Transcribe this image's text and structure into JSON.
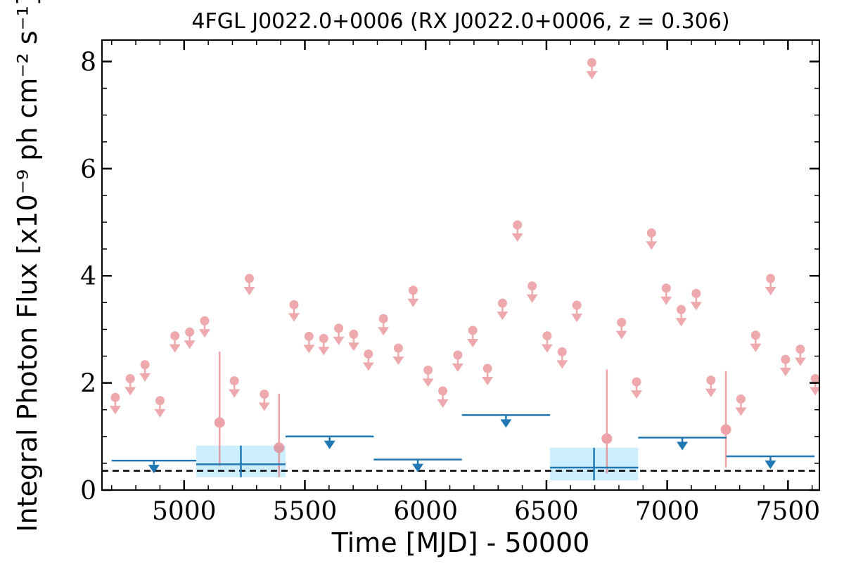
{
  "chart_data": {
    "type": "scatter",
    "title": "4FGL J0022.0+0006 (RX J0022.0+0006, z = 0.306)",
    "xlabel": "Time [MJD] - 50000",
    "ylabel": "Integral Photon Flux [x10⁻⁹ ph cm⁻² s⁻¹]",
    "xlim": [
      4660,
      7630
    ],
    "ylim": [
      0,
      8.4
    ],
    "x_ticks": [
      5000,
      5500,
      6000,
      6500,
      7000,
      7500
    ],
    "x_tick_labels": [
      "5000",
      "5500",
      "6000",
      "6500",
      "7000",
      "7500"
    ],
    "y_ticks": [
      0,
      2,
      4,
      6,
      8
    ],
    "y_tick_labels": [
      "0",
      "2",
      "4",
      "6",
      "8"
    ],
    "grid": false,
    "colors": {
      "monthly": "#e57c82",
      "yearly": "#1f77b4",
      "yearly_band": "#cdeefc",
      "baseline": "#000000"
    },
    "baseline_flux": 0.36,
    "monthly_upper_limits": [
      {
        "x": 4715,
        "y": 1.73
      },
      {
        "x": 4777,
        "y": 2.08
      },
      {
        "x": 4838,
        "y": 2.34
      },
      {
        "x": 4900,
        "y": 1.67
      },
      {
        "x": 4962,
        "y": 2.88
      },
      {
        "x": 5023,
        "y": 2.95
      },
      {
        "x": 5085,
        "y": 3.16
      },
      {
        "x": 5208,
        "y": 2.04
      },
      {
        "x": 5270,
        "y": 3.95
      },
      {
        "x": 5332,
        "y": 1.79
      },
      {
        "x": 5455,
        "y": 3.46
      },
      {
        "x": 5517,
        "y": 2.87
      },
      {
        "x": 5578,
        "y": 2.83
      },
      {
        "x": 5640,
        "y": 3.02
      },
      {
        "x": 5702,
        "y": 2.91
      },
      {
        "x": 5763,
        "y": 2.54
      },
      {
        "x": 5825,
        "y": 3.2
      },
      {
        "x": 5887,
        "y": 2.65
      },
      {
        "x": 5948,
        "y": 3.73
      },
      {
        "x": 6010,
        "y": 2.24
      },
      {
        "x": 6071,
        "y": 1.85
      },
      {
        "x": 6133,
        "y": 2.52
      },
      {
        "x": 6195,
        "y": 2.98
      },
      {
        "x": 6256,
        "y": 2.27
      },
      {
        "x": 6318,
        "y": 3.49
      },
      {
        "x": 6380,
        "y": 4.95
      },
      {
        "x": 6441,
        "y": 3.81
      },
      {
        "x": 6503,
        "y": 2.88
      },
      {
        "x": 6565,
        "y": 2.58
      },
      {
        "x": 6626,
        "y": 3.45
      },
      {
        "x": 6688,
        "y": 7.98
      },
      {
        "x": 6811,
        "y": 3.13
      },
      {
        "x": 6873,
        "y": 2.02
      },
      {
        "x": 6935,
        "y": 4.8
      },
      {
        "x": 6996,
        "y": 3.77
      },
      {
        "x": 7058,
        "y": 3.37
      },
      {
        "x": 7120,
        "y": 3.67
      },
      {
        "x": 7181,
        "y": 2.05
      },
      {
        "x": 7305,
        "y": 1.7
      },
      {
        "x": 7366,
        "y": 2.89
      },
      {
        "x": 7428,
        "y": 3.95
      },
      {
        "x": 7490,
        "y": 2.44
      },
      {
        "x": 7551,
        "y": 2.63
      },
      {
        "x": 7613,
        "y": 2.08
      }
    ],
    "monthly_detections": [
      {
        "x": 5147,
        "y": 1.26,
        "ylow": 0.45,
        "yhigh": 2.58
      },
      {
        "x": 5393,
        "y": 0.79,
        "ylow": 0.24,
        "yhigh": 1.8
      },
      {
        "x": 6750,
        "y": 0.96,
        "ylow": 0.31,
        "yhigh": 2.25
      },
      {
        "x": 7243,
        "y": 1.13,
        "ylow": 0.42,
        "yhigh": 2.22
      }
    ],
    "yearly_upper_limits": [
      {
        "x0": 4700,
        "x1": 5050,
        "y": 0.55
      },
      {
        "x0": 5420,
        "x1": 5785,
        "y": 1.0
      },
      {
        "x0": 5785,
        "x1": 6150,
        "y": 0.57
      },
      {
        "x0": 6150,
        "x1": 6515,
        "y": 1.4
      },
      {
        "x0": 6880,
        "x1": 7245,
        "y": 0.98
      },
      {
        "x0": 7245,
        "x1": 7610,
        "y": 0.63
      }
    ],
    "yearly_detections": [
      {
        "x0": 5050,
        "x1": 5420,
        "x": 5235,
        "y": 0.48,
        "ylow": 0.24,
        "yhigh": 0.83
      },
      {
        "x0": 6515,
        "x1": 6880,
        "x": 6697,
        "y": 0.42,
        "ylow": 0.18,
        "yhigh": 0.79
      }
    ]
  }
}
